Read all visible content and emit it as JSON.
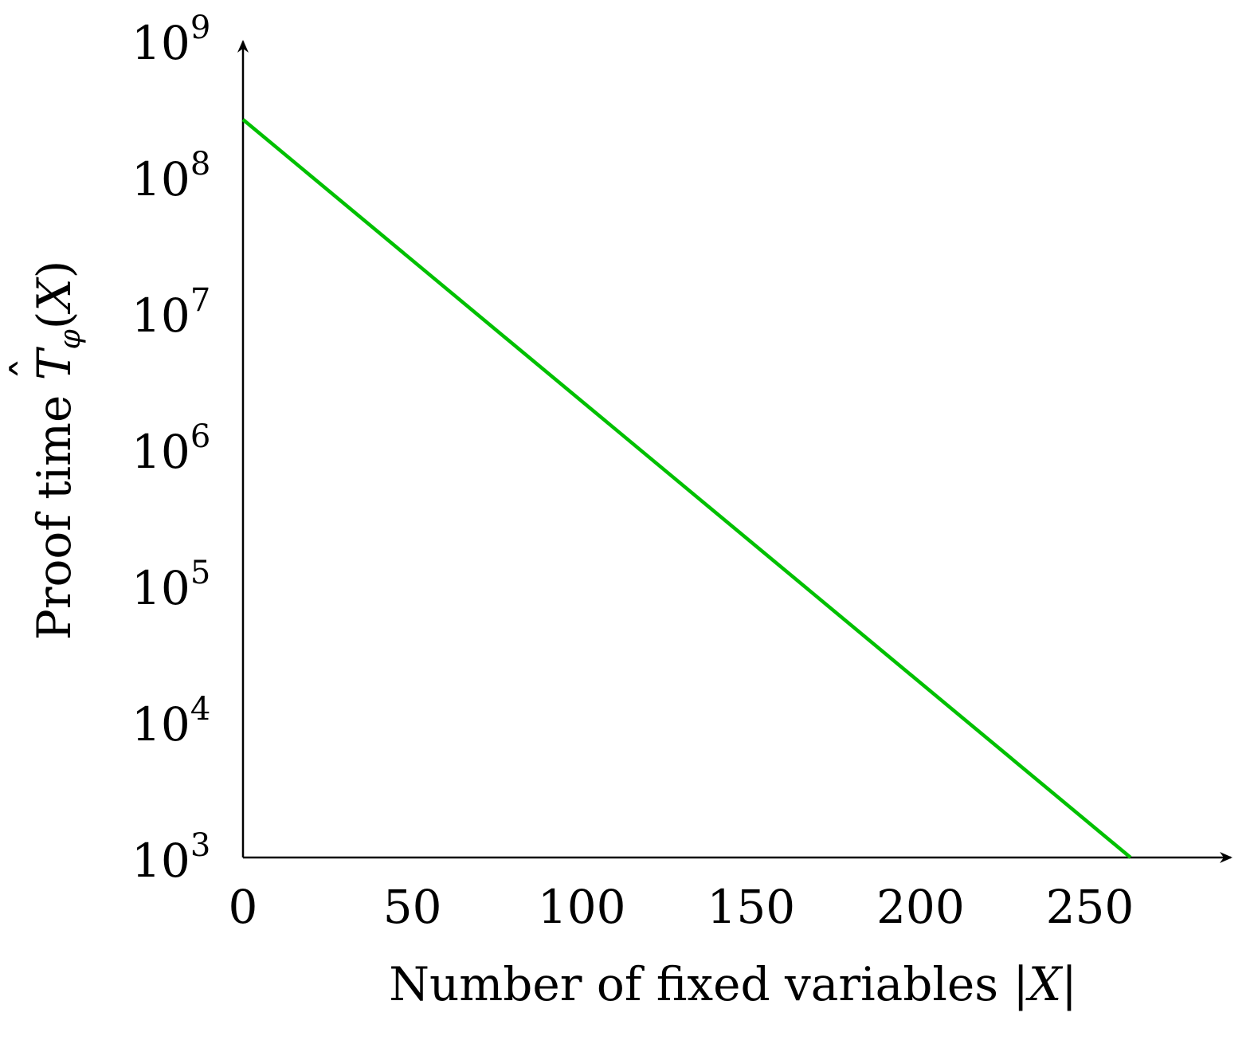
{
  "chart_data": {
    "type": "line",
    "title": "",
    "xlabel": "Number of fixed variables |X|",
    "ylabel": "Proof time T̂φ(X)",
    "xlabel_parts": {
      "text": "Number of fixed variables ",
      "bar_left": "|",
      "var": "X",
      "bar_right": "|"
    },
    "ylabel_parts": {
      "text": "Proof time ",
      "hat": "ˆ",
      "var": "T",
      "subscript": "φ",
      "open_paren": "(",
      "arg": "X",
      "close_paren": ")"
    },
    "x_scale": "linear",
    "y_scale": "log",
    "xlim": [
      0,
      285
    ],
    "ylim": [
      1000,
      1000000000
    ],
    "x_ticks": [
      {
        "value": 0,
        "label": "0"
      },
      {
        "value": 50,
        "label": "50"
      },
      {
        "value": 100,
        "label": "100"
      },
      {
        "value": 150,
        "label": "150"
      },
      {
        "value": 200,
        "label": "200"
      },
      {
        "value": 250,
        "label": "250"
      }
    ],
    "y_ticks": [
      {
        "value": 1000,
        "base": "10",
        "exp": "3"
      },
      {
        "value": 10000,
        "base": "10",
        "exp": "4"
      },
      {
        "value": 100000,
        "base": "10",
        "exp": "5"
      },
      {
        "value": 1000000,
        "base": "10",
        "exp": "6"
      },
      {
        "value": 10000000,
        "base": "10",
        "exp": "7"
      },
      {
        "value": 100000000,
        "base": "10",
        "exp": "8"
      },
      {
        "value": 1000000000,
        "base": "10",
        "exp": "9"
      }
    ],
    "grid": false,
    "legend": "none",
    "series": [
      {
        "color": "#00c000",
        "x": [
          0,
          262
        ],
        "y": [
          260000000,
          1000
        ]
      }
    ]
  }
}
